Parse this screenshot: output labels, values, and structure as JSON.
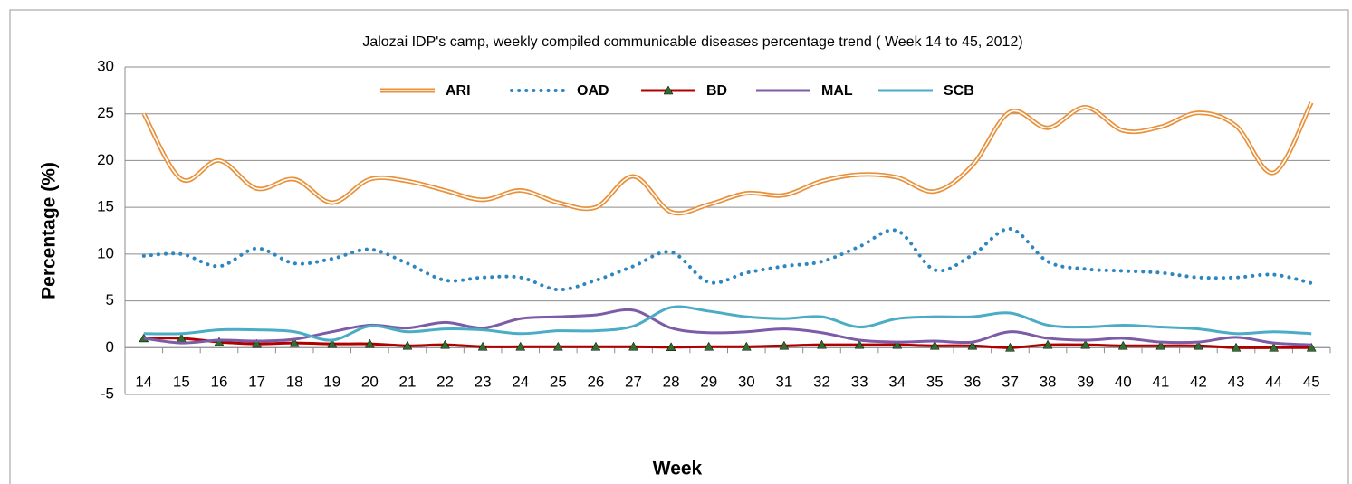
{
  "chart_data": {
    "type": "line",
    "title": "Jalozai  IDP's camp,  weekly compiled communicable  diseases percentage trend ( Week 14 to 45, 2012)",
    "y_label": "Percentage (%)",
    "x_label": "Week",
    "categories": [
      "14",
      "15",
      "16",
      "17",
      "18",
      "19",
      "20",
      "21",
      "22",
      "23",
      "24",
      "25",
      "26",
      "27",
      "28",
      "29",
      "30",
      "31",
      "32",
      "33",
      "34",
      "35",
      "36",
      "37",
      "38",
      "39",
      "40",
      "41",
      "42",
      "43",
      "44",
      "45"
    ],
    "ylim": [
      -5,
      30
    ],
    "yticks": [
      -5,
      0,
      5,
      10,
      15,
      20,
      25,
      30
    ],
    "grid": true,
    "legend": "top",
    "smooth": true,
    "series": [
      {
        "name": "ARI",
        "color": "#e8913a",
        "line_style": "double",
        "values": [
          25,
          18,
          20,
          17,
          18,
          15.5,
          18,
          17.8,
          16.8,
          15.8,
          16.8,
          15.5,
          15,
          18.3,
          14.5,
          15.3,
          16.5,
          16.3,
          17.8,
          18.5,
          18.2,
          16.7,
          19.5,
          25.2,
          23.5,
          25.7,
          23.2,
          23.6,
          25.1,
          23.7,
          18.7,
          26.2
        ]
      },
      {
        "name": "OAD",
        "color": "#2e86c1",
        "line_style": "dotted",
        "values": [
          9.8,
          10,
          8.7,
          10.6,
          9,
          9.5,
          10.5,
          9,
          7.2,
          7.5,
          7.5,
          6.2,
          7.2,
          8.7,
          10.2,
          7,
          8,
          8.7,
          9.2,
          10.8,
          12.5,
          8.3,
          9.9,
          12.7,
          9.2,
          8.4,
          8.2,
          8,
          7.5,
          7.5,
          7.8,
          6.9
        ]
      },
      {
        "name": "BD",
        "color": "#b00000",
        "line_style": "solid",
        "marker": "triangle",
        "marker_color": "#2f6e2f",
        "values": [
          1,
          1,
          0.6,
          0.4,
          0.5,
          0.4,
          0.4,
          0.2,
          0.3,
          0.1,
          0.1,
          0.1,
          0.1,
          0.1,
          0.05,
          0.1,
          0.1,
          0.2,
          0.3,
          0.3,
          0.3,
          0.2,
          0.2,
          0,
          0.3,
          0.3,
          0.2,
          0.2,
          0.2,
          0,
          0,
          0
        ]
      },
      {
        "name": "MAL",
        "color": "#7d5ba6",
        "line_style": "solid",
        "values": [
          1,
          0.5,
          0.8,
          0.7,
          0.9,
          1.7,
          2.4,
          2.1,
          2.7,
          2.1,
          3.1,
          3.3,
          3.5,
          4,
          2.1,
          1.6,
          1.7,
          2,
          1.6,
          0.8,
          0.6,
          0.7,
          0.6,
          1.7,
          1,
          0.8,
          1,
          0.6,
          0.6,
          1.1,
          0.5,
          0.3
        ]
      },
      {
        "name": "SCB",
        "color": "#4bacc6",
        "line_style": "solid",
        "values": [
          1.5,
          1.5,
          1.9,
          1.9,
          1.7,
          0.8,
          2.3,
          1.7,
          2,
          1.9,
          1.5,
          1.8,
          1.8,
          2.3,
          4.3,
          3.9,
          3.3,
          3.1,
          3.3,
          2.2,
          3.1,
          3.3,
          3.3,
          3.7,
          2.4,
          2.2,
          2.4,
          2.2,
          2,
          1.5,
          1.7,
          1.5
        ]
      }
    ]
  }
}
